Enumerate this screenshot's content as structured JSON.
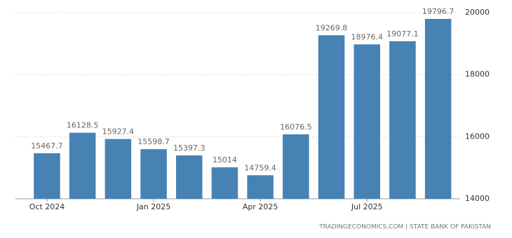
{
  "chart_data": {
    "type": "bar",
    "categories": [
      "Oct 2024",
      null,
      null,
      "Jan 2025",
      null,
      null,
      "Apr 2025",
      null,
      null,
      "Jul 2025",
      null,
      null
    ],
    "values": [
      15467.7,
      16128.5,
      15927.4,
      15598.7,
      15397.3,
      15014,
      14759.4,
      16076.5,
      19269.8,
      18976.4,
      19077.1,
      19796.7
    ],
    "color": "#4682b4",
    "ylim": [
      14000,
      20000
    ],
    "yticks": [
      14000,
      16000,
      18000,
      20000
    ],
    "grid": true,
    "source": "TRADINGECONOMICS.COM | STATE BANK OF PAKISTAN"
  }
}
